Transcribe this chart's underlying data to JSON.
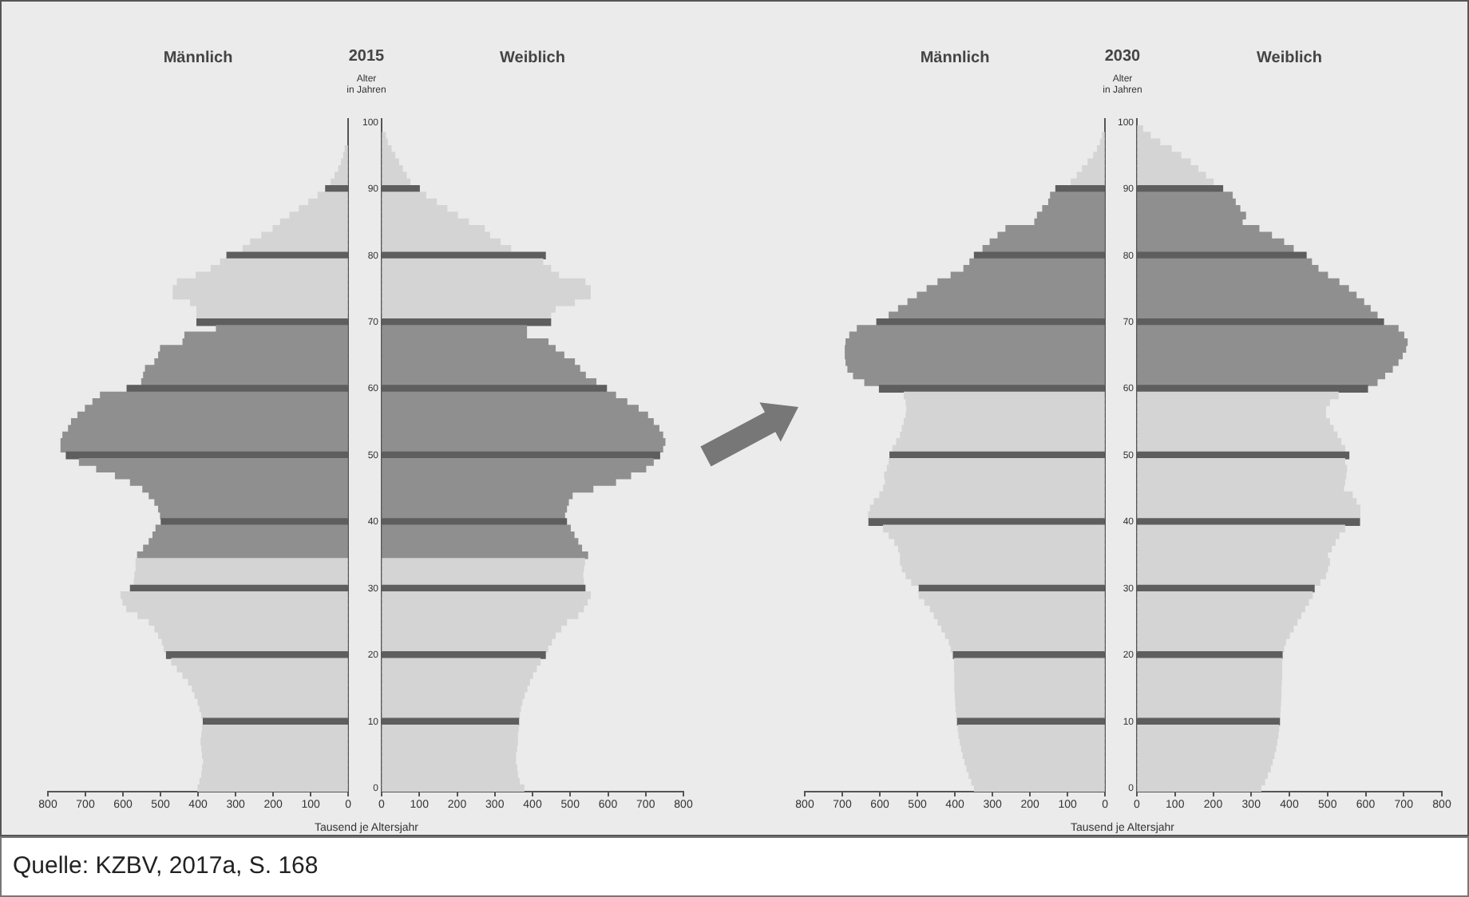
{
  "chart_data": [
    {
      "type": "bar",
      "orientation": "horizontal",
      "title": "Männlich",
      "annotations": [
        "2015"
      ],
      "tick_labels": "x",
      "categories": [
        "100",
        null,
        null,
        null,
        null,
        null,
        null,
        null,
        null,
        null,
        "90",
        null,
        null,
        null,
        null,
        null,
        null,
        null,
        null,
        null,
        "80",
        null,
        null,
        null,
        null,
        null,
        null,
        null,
        null,
        null,
        "70",
        null,
        null,
        null,
        null,
        null,
        null,
        null,
        null,
        null,
        "60",
        null,
        null,
        null,
        null,
        null,
        null,
        null,
        null,
        null,
        "50",
        null,
        null,
        null,
        null,
        null,
        null,
        null,
        null,
        null,
        "40",
        null,
        null,
        null,
        null,
        null,
        null,
        null,
        null,
        null,
        "30",
        null,
        null,
        null,
        null,
        null,
        null,
        null,
        null,
        null,
        "20",
        null,
        null,
        null,
        null,
        null,
        null,
        null,
        null,
        null,
        "10",
        null,
        null,
        null,
        null,
        null,
        null,
        null,
        null,
        null,
        "0"
      ],
      "values": [
        null,
        null,
        null,
        null,
        8,
        12,
        18,
        25,
        35,
        45,
        60,
        80,
        105,
        130,
        155,
        180,
        200,
        230,
        260,
        280,
        323,
        340,
        365,
        405,
        455,
        466,
        466,
        420,
        403,
        403,
        403,
        351,
        435,
        440,
        500,
        505,
        515,
        540,
        545,
        550,
        589,
        660,
        680,
        700,
        720,
        737,
        745,
        760,
        765,
        765,
        751,
        716,
        670,
        620,
        580,
        547,
        530,
        515,
        505,
        500,
        498,
        512,
        520,
        530,
        545,
        561,
        565,
        565,
        568,
        570,
        580,
        605,
        600,
        590,
        560,
        530,
        515,
        505,
        495,
        490,
        484,
        470,
        455,
        440,
        425,
        415,
        408,
        400,
        395,
        390,
        386,
        388,
        390,
        392,
        390,
        388,
        385,
        388,
        390,
        395,
        400
      ],
      "colors": [
        "#5e5e5e",
        "#d4d4d4",
        "#d4d4d4",
        "#d4d4d4",
        "#d4d4d4",
        "#d4d4d4",
        "#d4d4d4",
        "#d4d4d4",
        "#d4d4d4",
        "#d4d4d4",
        "#5e5e5e",
        "#d4d4d4",
        "#d4d4d4",
        "#d4d4d4",
        "#d4d4d4",
        "#d4d4d4",
        "#d4d4d4",
        "#d4d4d4",
        "#d4d4d4",
        "#d4d4d4",
        "#5e5e5e",
        "#d4d4d4",
        "#d4d4d4",
        "#d4d4d4",
        "#d4d4d4",
        "#d4d4d4",
        "#d4d4d4",
        "#d4d4d4",
        "#d4d4d4",
        "#d4d4d4",
        "#5e5e5e",
        "#8f8f8f",
        "#8f8f8f",
        "#8f8f8f",
        "#8f8f8f",
        "#8f8f8f",
        "#8f8f8f",
        "#8f8f8f",
        "#8f8f8f",
        "#8f8f8f",
        "#5e5e5e",
        "#8f8f8f",
        "#8f8f8f",
        "#8f8f8f",
        "#8f8f8f",
        "#8f8f8f",
        "#8f8f8f",
        "#8f8f8f",
        "#8f8f8f",
        "#8f8f8f",
        "#5e5e5e",
        "#8f8f8f",
        "#8f8f8f",
        "#8f8f8f",
        "#8f8f8f",
        "#8f8f8f",
        "#8f8f8f",
        "#8f8f8f",
        "#8f8f8f",
        "#8f8f8f",
        "#5e5e5e",
        "#8f8f8f",
        "#8f8f8f",
        "#8f8f8f",
        "#8f8f8f",
        "#8f8f8f",
        "#d4d4d4",
        "#d4d4d4",
        "#d4d4d4",
        "#d4d4d4",
        "#5e5e5e",
        "#d4d4d4",
        "#d4d4d4",
        "#d4d4d4",
        "#d4d4d4",
        "#d4d4d4",
        "#d4d4d4",
        "#d4d4d4",
        "#d4d4d4",
        "#d4d4d4",
        "#5e5e5e",
        "#d4d4d4",
        "#d4d4d4",
        "#d4d4d4",
        "#d4d4d4",
        "#d4d4d4",
        "#d4d4d4",
        "#d4d4d4",
        "#d4d4d4",
        "#d4d4d4",
        "#5e5e5e",
        "#d4d4d4",
        "#d4d4d4",
        "#d4d4d4",
        "#d4d4d4",
        "#d4d4d4",
        "#d4d4d4",
        "#d4d4d4",
        "#d4d4d4",
        "#d4d4d4",
        "#d4d4d4"
      ],
      "xlim": [
        800,
        0
      ],
      "xticks": [
        800,
        700,
        600,
        500,
        400,
        300,
        200,
        100,
        0
      ]
    },
    {
      "type": "bar",
      "orientation": "horizontal",
      "title": "Weiblich",
      "xlabel": "Tausend je Altersjahr",
      "ylabel": "Alter in Jahren",
      "categories": [
        "100",
        null,
        null,
        null,
        null,
        null,
        null,
        null,
        null,
        null,
        "90",
        null,
        null,
        null,
        null,
        null,
        null,
        null,
        null,
        null,
        "80",
        null,
        null,
        null,
        null,
        null,
        null,
        null,
        null,
        null,
        "70",
        null,
        null,
        null,
        null,
        null,
        null,
        null,
        null,
        null,
        "60",
        null,
        null,
        null,
        null,
        null,
        null,
        null,
        null,
        null,
        "50",
        null,
        null,
        null,
        null,
        null,
        null,
        null,
        null,
        null,
        "40",
        null,
        null,
        null,
        null,
        null,
        null,
        null,
        null,
        null,
        "30",
        null,
        null,
        null,
        null,
        null,
        null,
        null,
        null,
        null,
        "20",
        null,
        null,
        null,
        null,
        null,
        null,
        null,
        null,
        null,
        "10",
        null,
        null,
        null,
        null,
        null,
        null,
        null,
        null,
        null,
        "0"
      ],
      "values": [
        null,
        null,
        10,
        15,
        25,
        35,
        45,
        55,
        65,
        75,
        100,
        117,
        145,
        173,
        201,
        230,
        272,
        286,
        314,
        342,
        434,
        427,
        448,
        469,
        539,
        553,
        553,
        511,
        460,
        448,
        448,
        384,
        384,
        441,
        460,
        483,
        511,
        525,
        540,
        568,
        596,
        620,
        650,
        680,
        705,
        720,
        735,
        745,
        751,
        745,
        737,
        720,
        700,
        660,
        620,
        560,
        505,
        495,
        490,
        485,
        490,
        500,
        510,
        520,
        530,
        546,
        538,
        535,
        533,
        535,
        539,
        553,
        545,
        535,
        520,
        490,
        475,
        460,
        450,
        440,
        434,
        420,
        410,
        400,
        392,
        385,
        378,
        372,
        368,
        365,
        363,
        362,
        360,
        360,
        358,
        355,
        355,
        358,
        360,
        365,
        377
      ],
      "colors": [
        "#5e5e5e",
        "#d4d4d4",
        "#d4d4d4",
        "#d4d4d4",
        "#d4d4d4",
        "#d4d4d4",
        "#d4d4d4",
        "#d4d4d4",
        "#d4d4d4",
        "#d4d4d4",
        "#5e5e5e",
        "#d4d4d4",
        "#d4d4d4",
        "#d4d4d4",
        "#d4d4d4",
        "#d4d4d4",
        "#d4d4d4",
        "#d4d4d4",
        "#d4d4d4",
        "#d4d4d4",
        "#5e5e5e",
        "#d4d4d4",
        "#d4d4d4",
        "#d4d4d4",
        "#d4d4d4",
        "#d4d4d4",
        "#d4d4d4",
        "#d4d4d4",
        "#d4d4d4",
        "#d4d4d4",
        "#5e5e5e",
        "#8f8f8f",
        "#8f8f8f",
        "#8f8f8f",
        "#8f8f8f",
        "#8f8f8f",
        "#8f8f8f",
        "#8f8f8f",
        "#8f8f8f",
        "#8f8f8f",
        "#5e5e5e",
        "#8f8f8f",
        "#8f8f8f",
        "#8f8f8f",
        "#8f8f8f",
        "#8f8f8f",
        "#8f8f8f",
        "#8f8f8f",
        "#8f8f8f",
        "#8f8f8f",
        "#5e5e5e",
        "#8f8f8f",
        "#8f8f8f",
        "#8f8f8f",
        "#8f8f8f",
        "#8f8f8f",
        "#8f8f8f",
        "#8f8f8f",
        "#8f8f8f",
        "#8f8f8f",
        "#5e5e5e",
        "#8f8f8f",
        "#8f8f8f",
        "#8f8f8f",
        "#8f8f8f",
        "#8f8f8f",
        "#d4d4d4",
        "#d4d4d4",
        "#d4d4d4",
        "#d4d4d4",
        "#5e5e5e",
        "#d4d4d4",
        "#d4d4d4",
        "#d4d4d4",
        "#d4d4d4",
        "#d4d4d4",
        "#d4d4d4",
        "#d4d4d4",
        "#d4d4d4",
        "#d4d4d4",
        "#5e5e5e",
        "#d4d4d4",
        "#d4d4d4",
        "#d4d4d4",
        "#d4d4d4",
        "#d4d4d4",
        "#d4d4d4",
        "#d4d4d4",
        "#d4d4d4",
        "#d4d4d4",
        "#5e5e5e",
        "#d4d4d4",
        "#d4d4d4",
        "#d4d4d4",
        "#d4d4d4",
        "#d4d4d4",
        "#d4d4d4",
        "#d4d4d4",
        "#d4d4d4",
        "#d4d4d4",
        "#d4d4d4"
      ],
      "xlim": [
        0,
        800
      ],
      "xticks": [
        0,
        100,
        200,
        300,
        400,
        500,
        600,
        700,
        800
      ]
    },
    {
      "type": "bar",
      "orientation": "horizontal",
      "title": "Männlich",
      "annotations": [
        "2030"
      ],
      "tick_labels": "x",
      "categories": [
        "100",
        null,
        null,
        null,
        null,
        null,
        null,
        null,
        null,
        null,
        "90",
        null,
        null,
        null,
        null,
        null,
        null,
        null,
        null,
        null,
        "80",
        null,
        null,
        null,
        null,
        null,
        null,
        null,
        null,
        null,
        "70",
        null,
        null,
        null,
        null,
        null,
        null,
        null,
        null,
        null,
        "60",
        null,
        null,
        null,
        null,
        null,
        null,
        null,
        null,
        null,
        "50",
        null,
        null,
        null,
        null,
        null,
        null,
        null,
        null,
        null,
        "40",
        null,
        null,
        null,
        null,
        null,
        null,
        null,
        null,
        null,
        "30",
        null,
        null,
        null,
        null,
        null,
        null,
        null,
        null,
        null,
        "20",
        null,
        null,
        null,
        null,
        null,
        null,
        null,
        null,
        null,
        "10",
        null,
        null,
        null,
        null,
        null,
        null,
        null,
        null,
        null,
        "0"
      ],
      "values": [
        null,
        null,
        7,
        12,
        20,
        30,
        45,
        60,
        74,
        90,
        131,
        145,
        150,
        166,
        180,
        187,
        264,
        285,
        306,
        325,
        348,
        360,
        376,
        410,
        445,
        474,
        500,
        525,
        550,
        575,
        608,
        660,
        680,
        690,
        692,
        692,
        690,
        685,
        670,
        640,
        601,
        535,
        530,
        528,
        530,
        535,
        540,
        545,
        555,
        565,
        573,
        575,
        580,
        587,
        585,
        590,
        600,
        615,
        625,
        630,
        629,
        590,
        575,
        560,
        550,
        545,
        545,
        540,
        530,
        515,
        495,
        495,
        480,
        465,
        455,
        445,
        435,
        425,
        415,
        410,
        404,
        401,
        401,
        400,
        400,
        400,
        399,
        398,
        397,
        395,
        393,
        391,
        389,
        386,
        382,
        378,
        373,
        368,
        362,
        355,
        348
      ],
      "colors": [
        "#5e5e5e",
        "#d4d4d4",
        "#d4d4d4",
        "#d4d4d4",
        "#d4d4d4",
        "#d4d4d4",
        "#d4d4d4",
        "#d4d4d4",
        "#d4d4d4",
        "#d4d4d4",
        "#5e5e5e",
        "#8f8f8f",
        "#8f8f8f",
        "#8f8f8f",
        "#8f8f8f",
        "#8f8f8f",
        "#8f8f8f",
        "#8f8f8f",
        "#8f8f8f",
        "#8f8f8f",
        "#5e5e5e",
        "#8f8f8f",
        "#8f8f8f",
        "#8f8f8f",
        "#8f8f8f",
        "#8f8f8f",
        "#8f8f8f",
        "#8f8f8f",
        "#8f8f8f",
        "#8f8f8f",
        "#5e5e5e",
        "#8f8f8f",
        "#8f8f8f",
        "#8f8f8f",
        "#8f8f8f",
        "#8f8f8f",
        "#8f8f8f",
        "#8f8f8f",
        "#8f8f8f",
        "#8f8f8f",
        "#5e5e5e",
        "#d4d4d4",
        "#d4d4d4",
        "#d4d4d4",
        "#d4d4d4",
        "#d4d4d4",
        "#d4d4d4",
        "#d4d4d4",
        "#d4d4d4",
        "#d4d4d4",
        "#5e5e5e",
        "#d4d4d4",
        "#d4d4d4",
        "#d4d4d4",
        "#d4d4d4",
        "#d4d4d4",
        "#d4d4d4",
        "#d4d4d4",
        "#d4d4d4",
        "#d4d4d4",
        "#5e5e5e",
        "#d4d4d4",
        "#d4d4d4",
        "#d4d4d4",
        "#d4d4d4",
        "#d4d4d4",
        "#d4d4d4",
        "#d4d4d4",
        "#d4d4d4",
        "#d4d4d4",
        "#5e5e5e",
        "#d4d4d4",
        "#d4d4d4",
        "#d4d4d4",
        "#d4d4d4",
        "#d4d4d4",
        "#d4d4d4",
        "#d4d4d4",
        "#d4d4d4",
        "#d4d4d4",
        "#5e5e5e",
        "#d4d4d4",
        "#d4d4d4",
        "#d4d4d4",
        "#d4d4d4",
        "#d4d4d4",
        "#d4d4d4",
        "#d4d4d4",
        "#d4d4d4",
        "#d4d4d4",
        "#5e5e5e",
        "#d4d4d4",
        "#d4d4d4",
        "#d4d4d4",
        "#d4d4d4",
        "#d4d4d4",
        "#d4d4d4",
        "#d4d4d4",
        "#d4d4d4",
        "#d4d4d4",
        "#d4d4d4"
      ],
      "xlim": [
        800,
        0
      ],
      "xticks": [
        800,
        700,
        600,
        500,
        400,
        300,
        200,
        100,
        0
      ]
    },
    {
      "type": "bar",
      "orientation": "horizontal",
      "title": "Weiblich",
      "xlabel": "Tausend je Altersjahr",
      "ylabel": "Alter in Jahren",
      "annotations": [
        "Quelle: KZBV, 2017a, S. 168"
      ],
      "categories": [
        "100",
        null,
        null,
        null,
        null,
        null,
        null,
        null,
        null,
        null,
        "90",
        null,
        null,
        null,
        null,
        null,
        null,
        null,
        null,
        null,
        "80",
        null,
        null,
        null,
        null,
        null,
        null,
        null,
        null,
        null,
        "70",
        null,
        null,
        null,
        null,
        null,
        null,
        null,
        null,
        null,
        "60",
        null,
        null,
        null,
        null,
        null,
        null,
        null,
        null,
        null,
        "50",
        null,
        null,
        null,
        null,
        null,
        null,
        null,
        null,
        null,
        "40",
        null,
        null,
        null,
        null,
        null,
        null,
        null,
        null,
        null,
        "30",
        null,
        null,
        null,
        null,
        null,
        null,
        null,
        null,
        null,
        "20",
        null,
        null,
        null,
        null,
        null,
        null,
        null,
        null,
        null,
        "10",
        null,
        null,
        null,
        null,
        null,
        null,
        null,
        null,
        null,
        "0"
      ],
      "values": [
        null,
        15,
        35,
        60,
        90,
        115,
        140,
        160,
        180,
        200,
        225,
        250,
        258,
        270,
        285,
        276,
        320,
        353,
        385,
        410,
        444,
        458,
        475,
        500,
        530,
        555,
        575,
        595,
        612,
        630,
        647,
        685,
        700,
        709,
        705,
        696,
        685,
        670,
        650,
        630,
        605,
        528,
        505,
        495,
        495,
        505,
        515,
        525,
        535,
        545,
        556,
        545,
        550,
        548,
        545,
        542,
        565,
        575,
        585,
        585,
        584,
        545,
        530,
        520,
        510,
        500,
        505,
        500,
        495,
        480,
        465,
        460,
        450,
        440,
        430,
        420,
        410,
        400,
        390,
        385,
        381,
        380,
        380,
        380,
        379,
        378,
        378,
        377,
        376,
        375,
        374,
        372,
        370,
        367,
        364,
        360,
        355,
        350,
        342,
        335,
        325
      ],
      "colors": [
        "#5e5e5e",
        "#d4d4d4",
        "#d4d4d4",
        "#d4d4d4",
        "#d4d4d4",
        "#d4d4d4",
        "#d4d4d4",
        "#d4d4d4",
        "#d4d4d4",
        "#d4d4d4",
        "#5e5e5e",
        "#8f8f8f",
        "#8f8f8f",
        "#8f8f8f",
        "#8f8f8f",
        "#8f8f8f",
        "#8f8f8f",
        "#8f8f8f",
        "#8f8f8f",
        "#8f8f8f",
        "#5e5e5e",
        "#8f8f8f",
        "#8f8f8f",
        "#8f8f8f",
        "#8f8f8f",
        "#8f8f8f",
        "#8f8f8f",
        "#8f8f8f",
        "#8f8f8f",
        "#8f8f8f",
        "#5e5e5e",
        "#8f8f8f",
        "#8f8f8f",
        "#8f8f8f",
        "#8f8f8f",
        "#8f8f8f",
        "#8f8f8f",
        "#8f8f8f",
        "#8f8f8f",
        "#8f8f8f",
        "#5e5e5e",
        "#d4d4d4",
        "#d4d4d4",
        "#d4d4d4",
        "#d4d4d4",
        "#d4d4d4",
        "#d4d4d4",
        "#d4d4d4",
        "#d4d4d4",
        "#d4d4d4",
        "#5e5e5e",
        "#d4d4d4",
        "#d4d4d4",
        "#d4d4d4",
        "#d4d4d4",
        "#d4d4d4",
        "#d4d4d4",
        "#d4d4d4",
        "#d4d4d4",
        "#d4d4d4",
        "#5e5e5e",
        "#d4d4d4",
        "#d4d4d4",
        "#d4d4d4",
        "#d4d4d4",
        "#d4d4d4",
        "#d4d4d4",
        "#d4d4d4",
        "#d4d4d4",
        "#d4d4d4",
        "#5e5e5e",
        "#d4d4d4",
        "#d4d4d4",
        "#d4d4d4",
        "#d4d4d4",
        "#d4d4d4",
        "#d4d4d4",
        "#d4d4d4",
        "#d4d4d4",
        "#d4d4d4",
        "#5e5e5e",
        "#d4d4d4",
        "#d4d4d4",
        "#d4d4d4",
        "#d4d4d4",
        "#d4d4d4",
        "#d4d4d4",
        "#d4d4d4",
        "#d4d4d4",
        "#d4d4d4",
        "#5e5e5e",
        "#d4d4d4",
        "#d4d4d4",
        "#d4d4d4",
        "#d4d4d4",
        "#d4d4d4",
        "#d4d4d4",
        "#d4d4d4",
        "#d4d4d4",
        "#d4d4d4",
        "#d4d4d4"
      ],
      "xlim": [
        0,
        800
      ],
      "xticks": [
        0,
        100,
        200,
        300,
        400,
        500,
        600,
        700,
        800
      ]
    }
  ]
}
